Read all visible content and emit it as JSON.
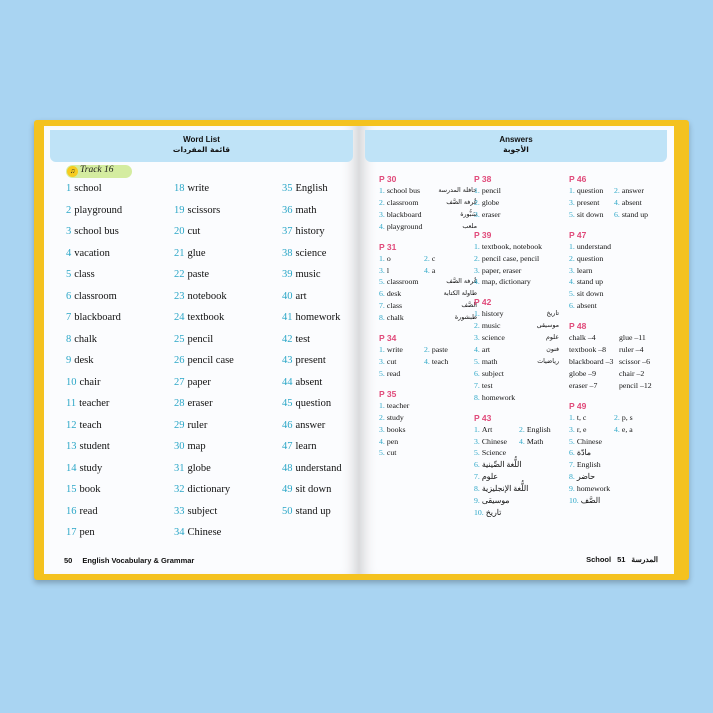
{
  "left_page": {
    "header_en": "Word List",
    "header_ar": "قائمة المفردات",
    "track": "Track 16",
    "columns": [
      [
        {
          "n": "1",
          "w": "school"
        },
        {
          "n": "2",
          "w": "playground"
        },
        {
          "n": "3",
          "w": "school bus"
        },
        {
          "n": "4",
          "w": "vacation"
        },
        {
          "n": "5",
          "w": "class"
        },
        {
          "n": "6",
          "w": "classroom"
        },
        {
          "n": "7",
          "w": "blackboard"
        },
        {
          "n": "8",
          "w": "chalk"
        },
        {
          "n": "9",
          "w": "desk"
        },
        {
          "n": "10",
          "w": "chair"
        },
        {
          "n": "11",
          "w": "teacher"
        },
        {
          "n": "12",
          "w": "teach"
        },
        {
          "n": "13",
          "w": "student"
        },
        {
          "n": "14",
          "w": "study"
        },
        {
          "n": "15",
          "w": "book"
        },
        {
          "n": "16",
          "w": "read"
        },
        {
          "n": "17",
          "w": "pen"
        }
      ],
      [
        {
          "n": "18",
          "w": "write"
        },
        {
          "n": "19",
          "w": "scissors"
        },
        {
          "n": "20",
          "w": "cut"
        },
        {
          "n": "21",
          "w": "glue"
        },
        {
          "n": "22",
          "w": "paste"
        },
        {
          "n": "23",
          "w": "notebook"
        },
        {
          "n": "24",
          "w": "textbook"
        },
        {
          "n": "25",
          "w": "pencil"
        },
        {
          "n": "26",
          "w": "pencil case"
        },
        {
          "n": "27",
          "w": "paper"
        },
        {
          "n": "28",
          "w": "eraser"
        },
        {
          "n": "29",
          "w": "ruler"
        },
        {
          "n": "30",
          "w": "map"
        },
        {
          "n": "31",
          "w": "globe"
        },
        {
          "n": "32",
          "w": "dictionary"
        },
        {
          "n": "33",
          "w": "subject"
        },
        {
          "n": "34",
          "w": "Chinese"
        }
      ],
      [
        {
          "n": "35",
          "w": "English"
        },
        {
          "n": "36",
          "w": "math"
        },
        {
          "n": "37",
          "w": "history"
        },
        {
          "n": "38",
          "w": "science"
        },
        {
          "n": "39",
          "w": "music"
        },
        {
          "n": "40",
          "w": "art"
        },
        {
          "n": "41",
          "w": "homework"
        },
        {
          "n": "42",
          "w": "test"
        },
        {
          "n": "43",
          "w": "present"
        },
        {
          "n": "44",
          "w": "absent"
        },
        {
          "n": "45",
          "w": "question"
        },
        {
          "n": "46",
          "w": "answer"
        },
        {
          "n": "47",
          "w": "learn"
        },
        {
          "n": "48",
          "w": "understand"
        },
        {
          "n": "49",
          "w": "sit down"
        },
        {
          "n": "50",
          "w": "stand up"
        }
      ]
    ],
    "footer_page": "50",
    "footer_title": "English Vocabulary & Grammar"
  },
  "right_page": {
    "header_en": "Answers",
    "header_ar": "الأجوبة",
    "footer_en": "School",
    "footer_ar": "المدرسة",
    "footer_page": "51",
    "col1": [
      {
        "title": "P 30",
        "lines": [
          {
            "n": "1.",
            "t": "school bus",
            "ar": "حافلة المدرسة"
          },
          {
            "n": "2.",
            "t": "classroom",
            "ar": "غُرفة الصَّف"
          },
          {
            "n": "3.",
            "t": "blackboard",
            "ar": "سَبُّورة"
          },
          {
            "n": "4.",
            "t": "playground",
            "ar": "ملعب"
          }
        ]
      },
      {
        "title": "P 31",
        "lines": [
          {
            "n": "1.",
            "t": "o",
            "n2": "2.",
            "t2": "c"
          },
          {
            "n": "3.",
            "t": "l",
            "n2": "4.",
            "t2": "a"
          },
          {
            "n": "5.",
            "t": "classroom",
            "ar": "غُرفة الصَّف"
          },
          {
            "n": "6.",
            "t": "desk",
            "ar": "طاولة الكتابة"
          },
          {
            "n": "7.",
            "t": "class",
            "ar": "الصَّف"
          },
          {
            "n": "8.",
            "t": "chalk",
            "ar": "طبشورة"
          }
        ]
      },
      {
        "title": "P 34",
        "lines": [
          {
            "n": "1.",
            "t": "write",
            "n2": "2.",
            "t2": "paste"
          },
          {
            "n": "3.",
            "t": "cut",
            "n2": "4.",
            "t2": "teach"
          },
          {
            "n": "5.",
            "t": "read"
          }
        ]
      },
      {
        "title": "P 35",
        "lines": [
          {
            "n": "1.",
            "t": "teacher"
          },
          {
            "n": "2.",
            "t": "study"
          },
          {
            "n": "3.",
            "t": "books"
          },
          {
            "n": "4.",
            "t": "pen"
          },
          {
            "n": "5.",
            "t": "cut"
          }
        ]
      }
    ],
    "col2": [
      {
        "title": "P 38",
        "lines": [
          {
            "n": "1.",
            "t": "pencil"
          },
          {
            "n": "2.",
            "t": "globe"
          },
          {
            "n": "3.",
            "t": "eraser"
          }
        ]
      },
      {
        "title": "P 39",
        "lines": [
          {
            "n": "1.",
            "t": "textbook, notebook"
          },
          {
            "n": "2.",
            "t": "pencil case, pencil"
          },
          {
            "n": "3.",
            "t": "paper, eraser"
          },
          {
            "n": "4.",
            "t": "map, dictionary"
          }
        ]
      },
      {
        "title": "P 42",
        "lines": [
          {
            "n": "1.",
            "t": "history",
            "ar": "تاريخ"
          },
          {
            "n": "2.",
            "t": "music",
            "ar": "موسيقى"
          },
          {
            "n": "3.",
            "t": "science",
            "ar": "علوم"
          },
          {
            "n": "4.",
            "t": "art",
            "ar": "فنون"
          },
          {
            "n": "5.",
            "t": "math",
            "ar": "رياضيات"
          },
          {
            "n": "6.",
            "t": "subject"
          },
          {
            "n": "7.",
            "t": "test"
          },
          {
            "n": "8.",
            "t": "homework"
          }
        ]
      },
      {
        "title": "P 43",
        "lines": [
          {
            "n": "1.",
            "t": "Art",
            "n2": "2.",
            "t2": "English"
          },
          {
            "n": "3.",
            "t": "Chinese",
            "n2": "4.",
            "t2": "Math"
          },
          {
            "n": "5.",
            "t": "Science"
          },
          {
            "n": "6.",
            "t": "اللُّغة الصِّينية"
          },
          {
            "n": "7.",
            "t": "علوم"
          },
          {
            "n": "8.",
            "t": "اللُّغة الإنجليزية"
          },
          {
            "n": "9.",
            "t": "موسيقى"
          },
          {
            "n": "10.",
            "t": "تاريخ"
          }
        ]
      }
    ],
    "col3": [
      {
        "title": "P 46",
        "lines": [
          {
            "n": "1.",
            "t": "question",
            "n2": "2.",
            "t2": "answer"
          },
          {
            "n": "3.",
            "t": "present",
            "n2": "4.",
            "t2": "absent"
          },
          {
            "n": "5.",
            "t": "sit down",
            "n2": "6.",
            "t2": "stand up"
          }
        ]
      },
      {
        "title": "P 47",
        "lines": [
          {
            "n": "1.",
            "t": "understand"
          },
          {
            "n": "2.",
            "t": "question"
          },
          {
            "n": "3.",
            "t": "learn"
          },
          {
            "n": "4.",
            "t": "stand up"
          },
          {
            "n": "5.",
            "t": "sit down"
          },
          {
            "n": "6.",
            "t": "absent"
          }
        ]
      },
      {
        "title": "P 48",
        "lines": [
          {
            "t": "chalk –4",
            "t2": "glue –11"
          },
          {
            "t": "textbook –8",
            "t2": "ruler –4"
          },
          {
            "t": "blackboard –3",
            "t2": "scissor –6"
          },
          {
            "t": "globe –9",
            "t2": "chair –2"
          },
          {
            "t": "eraser –7",
            "t2": "pencil –12"
          }
        ]
      },
      {
        "title": "P 49",
        "lines": [
          {
            "n": "1.",
            "t": "t, c",
            "n2": "2.",
            "t2": "p, s"
          },
          {
            "n": "3.",
            "t": "r, e",
            "n2": "4.",
            "t2": "e, a"
          },
          {
            "n": "5.",
            "t": "Chinese"
          },
          {
            "n": "6.",
            "t": "مادّة"
          },
          {
            "n": "7.",
            "t": "English"
          },
          {
            "n": "8.",
            "t": "حاضر"
          },
          {
            "n": "9.",
            "t": "homework"
          },
          {
            "n": "10.",
            "t": "الصَّف"
          }
        ]
      }
    ]
  }
}
